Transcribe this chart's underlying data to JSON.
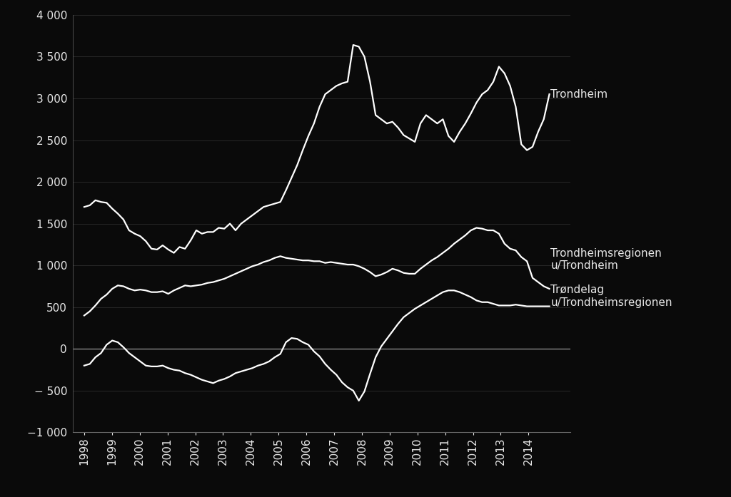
{
  "background_color": "#0a0a0a",
  "text_color": "#e8e8e8",
  "line_color": "#ffffff",
  "zero_line_color": "#999999",
  "ylim": [
    -1000,
    4000
  ],
  "yticks": [
    -1000,
    -500,
    0,
    500,
    1000,
    1500,
    2000,
    2500,
    3000,
    3500,
    4000
  ],
  "legend_labels": [
    "Trondheim",
    "Trondheimsregionen\nu/Trondheim",
    "Trøndelag\nu/Trondheimsregionen"
  ],
  "xtick_years": [
    "1998",
    "1999",
    "2000",
    "2001",
    "2002",
    "2003",
    "2004",
    "2005",
    "2006",
    "2007",
    "2008",
    "2009",
    "2010",
    "2011",
    "2012",
    "2013",
    "2014"
  ],
  "series": {
    "trondheim": [
      1700,
      1720,
      1780,
      1760,
      1750,
      1680,
      1620,
      1550,
      1420,
      1380,
      1350,
      1290,
      1200,
      1190,
      1240,
      1190,
      1150,
      1220,
      1200,
      1300,
      1420,
      1380,
      1400,
      1400,
      1450,
      1440,
      1500,
      1420,
      1500,
      1550,
      1600,
      1650,
      1700,
      1720,
      1740,
      1760,
      1900,
      2050,
      2200,
      2380,
      2550,
      2700,
      2900,
      3050,
      3100,
      3150,
      3180,
      3200,
      3640,
      3620,
      3500,
      3200,
      2800,
      2750,
      2700,
      2720,
      2650,
      2560,
      2520,
      2480,
      2700,
      2800,
      2750,
      2700,
      2750,
      2550,
      2480,
      2600,
      2700,
      2820,
      2950,
      3050,
      3100,
      3200,
      3380,
      3300,
      3150,
      2900,
      2450,
      2380,
      2420,
      2600,
      2750,
      3050
    ],
    "trondheimsregionen": [
      400,
      450,
      520,
      600,
      650,
      720,
      760,
      750,
      720,
      700,
      710,
      700,
      680,
      680,
      690,
      660,
      700,
      730,
      760,
      750,
      760,
      770,
      790,
      800,
      820,
      840,
      870,
      900,
      930,
      960,
      990,
      1010,
      1040,
      1060,
      1090,
      1110,
      1090,
      1080,
      1070,
      1060,
      1060,
      1050,
      1050,
      1030,
      1040,
      1030,
      1020,
      1010,
      1010,
      990,
      960,
      920,
      870,
      890,
      920,
      960,
      940,
      910,
      900,
      900,
      960,
      1010,
      1060,
      1100,
      1150,
      1200,
      1260,
      1310,
      1360,
      1420,
      1450,
      1440,
      1420,
      1420,
      1380,
      1260,
      1200,
      1180,
      1100,
      1050,
      850,
      800,
      750,
      720
    ],
    "trondelag": [
      -200,
      -180,
      -100,
      -50,
      50,
      100,
      80,
      20,
      -50,
      -100,
      -150,
      -200,
      -210,
      -210,
      -200,
      -230,
      -250,
      -260,
      -290,
      -310,
      -340,
      -370,
      -390,
      -410,
      -380,
      -360,
      -330,
      -290,
      -270,
      -250,
      -230,
      -200,
      -180,
      -150,
      -100,
      -60,
      80,
      130,
      120,
      80,
      50,
      -30,
      -90,
      -180,
      -250,
      -310,
      -400,
      -460,
      -500,
      -620,
      -510,
      -300,
      -100,
      30,
      120,
      210,
      300,
      380,
      430,
      480,
      520,
      560,
      600,
      640,
      680,
      700,
      700,
      680,
      650,
      620,
      580,
      560,
      560,
      540,
      520,
      520,
      520,
      530,
      520,
      510,
      510,
      510,
      510,
      510
    ]
  }
}
